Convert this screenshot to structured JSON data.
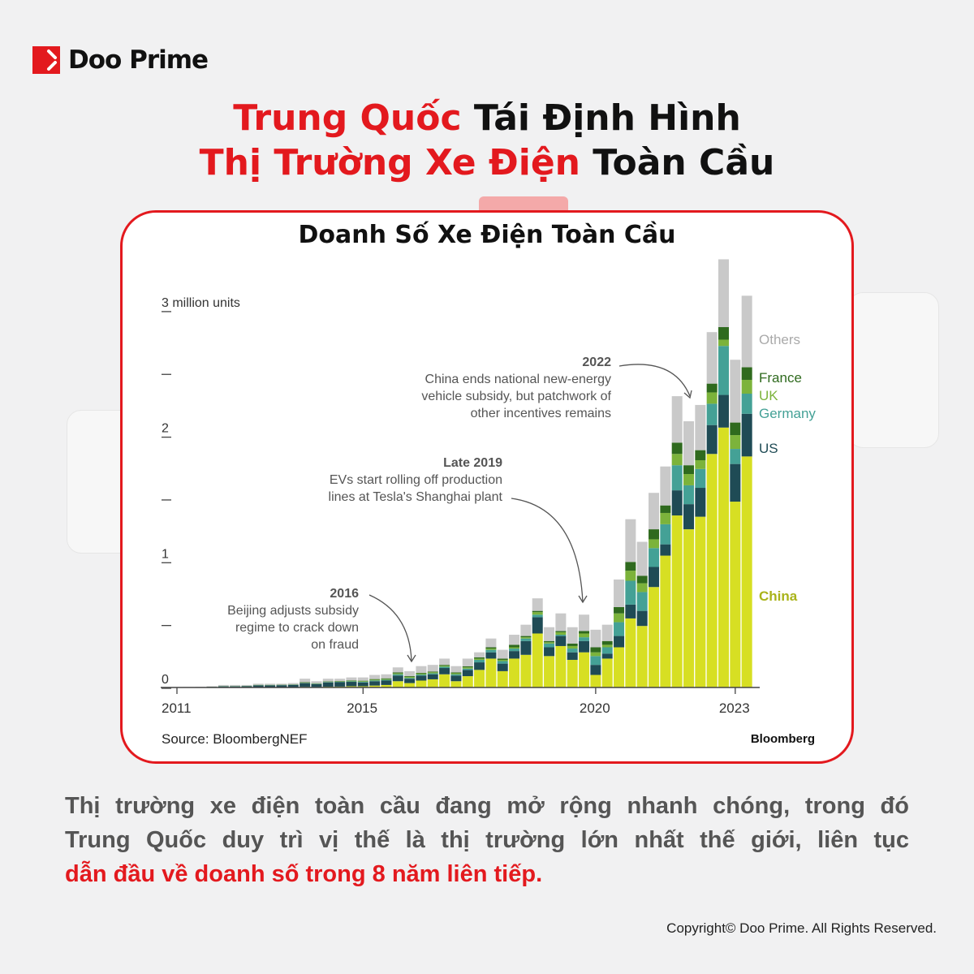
{
  "brand": {
    "name": "Doo Prime",
    "color": "#e3191e"
  },
  "title": {
    "line1_highlight": "Trung Quốc",
    "line1_rest": " Tái Định Hình",
    "line2_highlight": "Thị Trường Xe Điện",
    "line2_rest": " Toàn Cầu"
  },
  "chart_data": {
    "type": "bar",
    "stacked": true,
    "title": "Doanh Số Xe Điện Toàn Cầu",
    "ylabel": "3 million units",
    "ylim": [
      0,
      3.4
    ],
    "yticks": [
      0,
      0.5,
      1,
      1.5,
      2,
      2.5,
      3
    ],
    "ytick_labels": {
      "0": "0",
      "1": "1",
      "2": "2",
      "3": "3 million units"
    },
    "xtick_labels": [
      "2011",
      "2015",
      "2020",
      "2023"
    ],
    "categories": [
      "2011Q1",
      "2011Q2",
      "2011Q3",
      "2011Q4",
      "2012Q1",
      "2012Q2",
      "2012Q3",
      "2012Q4",
      "2013Q1",
      "2013Q2",
      "2013Q3",
      "2013Q4",
      "2014Q1",
      "2014Q2",
      "2014Q3",
      "2014Q4",
      "2015Q1",
      "2015Q2",
      "2015Q3",
      "2015Q4",
      "2016Q1",
      "2016Q2",
      "2016Q3",
      "2016Q4",
      "2017Q1",
      "2017Q2",
      "2017Q3",
      "2017Q4",
      "2018Q1",
      "2018Q2",
      "2018Q3",
      "2018Q4",
      "2019Q1",
      "2019Q2",
      "2019Q3",
      "2019Q4",
      "2020Q1",
      "2020Q2",
      "2020Q3",
      "2020Q4",
      "2021Q1",
      "2021Q2",
      "2021Q3",
      "2021Q4",
      "2022Q1",
      "2022Q2",
      "2022Q3",
      "2022Q4",
      "2023Q1",
      "2023Q2"
    ],
    "series": [
      {
        "name": "China",
        "color": "#d7df23",
        "values": [
          0,
          0,
          0,
          0.001,
          0.001,
          0.001,
          0.002,
          0.003,
          0.002,
          0.002,
          0.003,
          0.005,
          0.004,
          0.006,
          0.007,
          0.01,
          0.01,
          0.015,
          0.02,
          0.05,
          0.035,
          0.055,
          0.065,
          0.105,
          0.05,
          0.09,
          0.14,
          0.23,
          0.13,
          0.23,
          0.26,
          0.43,
          0.25,
          0.33,
          0.22,
          0.28,
          0.1,
          0.23,
          0.32,
          0.55,
          0.49,
          0.8,
          1.05,
          1.37,
          1.26,
          1.36,
          1.86,
          2.07,
          1.48,
          1.84
        ]
      },
      {
        "name": "US",
        "color": "#1f4b55",
        "values": [
          0.002,
          0.002,
          0.002,
          0.004,
          0.008,
          0.008,
          0.009,
          0.014,
          0.015,
          0.016,
          0.018,
          0.03,
          0.024,
          0.035,
          0.035,
          0.035,
          0.03,
          0.035,
          0.035,
          0.045,
          0.035,
          0.04,
          0.04,
          0.05,
          0.045,
          0.05,
          0.06,
          0.05,
          0.06,
          0.06,
          0.11,
          0.13,
          0.07,
          0.08,
          0.06,
          0.09,
          0.08,
          0.04,
          0.09,
          0.11,
          0.12,
          0.16,
          0.09,
          0.2,
          0.2,
          0.23,
          0.23,
          0.26,
          0.3,
          0.34
        ]
      },
      {
        "name": "Germany",
        "color": "#44a196",
        "values": [
          0,
          0,
          0,
          0,
          0.001,
          0.001,
          0.001,
          0.001,
          0.001,
          0.001,
          0.001,
          0.002,
          0.002,
          0.003,
          0.003,
          0.004,
          0.005,
          0.006,
          0.006,
          0.01,
          0.006,
          0.008,
          0.008,
          0.01,
          0.01,
          0.01,
          0.02,
          0.02,
          0.02,
          0.02,
          0.02,
          0.02,
          0.03,
          0.01,
          0.03,
          0.03,
          0.07,
          0.05,
          0.11,
          0.19,
          0.15,
          0.15,
          0.16,
          0.2,
          0.15,
          0.15,
          0.17,
          0.39,
          0.12,
          0.16
        ]
      },
      {
        "name": "UK",
        "color": "#7cb33b",
        "values": [
          0,
          0,
          0,
          0,
          0.001,
          0.001,
          0.001,
          0.001,
          0.001,
          0.001,
          0.001,
          0.002,
          0.002,
          0.002,
          0.003,
          0.004,
          0.005,
          0.006,
          0.006,
          0.007,
          0.008,
          0.008,
          0.008,
          0.008,
          0.008,
          0.01,
          0.01,
          0.01,
          0.01,
          0.01,
          0.01,
          0.02,
          0.01,
          0.02,
          0.02,
          0.03,
          0.03,
          0.02,
          0.07,
          0.08,
          0.07,
          0.07,
          0.09,
          0.09,
          0.09,
          0.07,
          0.09,
          0.05,
          0.11,
          0.11
        ]
      },
      {
        "name": "France",
        "color": "#2f6a1e",
        "values": [
          0,
          0,
          0.001,
          0.001,
          0.001,
          0.001,
          0.001,
          0.002,
          0.002,
          0.002,
          0.002,
          0.003,
          0.002,
          0.003,
          0.003,
          0.004,
          0.004,
          0.005,
          0.006,
          0.008,
          0.006,
          0.006,
          0.006,
          0.007,
          0.007,
          0.008,
          0.01,
          0.01,
          0.01,
          0.02,
          0.01,
          0.01,
          0.01,
          0.01,
          0.02,
          0.02,
          0.04,
          0.03,
          0.05,
          0.07,
          0.06,
          0.08,
          0.06,
          0.09,
          0.07,
          0.08,
          0.07,
          0.1,
          0.1,
          0.1
        ]
      },
      {
        "name": "Others",
        "color": "#c9c9c9",
        "values": [
          0.001,
          0.002,
          0.002,
          0.004,
          0.008,
          0.008,
          0.006,
          0.009,
          0.009,
          0.008,
          0.01,
          0.028,
          0.016,
          0.021,
          0.019,
          0.023,
          0.026,
          0.033,
          0.032,
          0.04,
          0.04,
          0.053,
          0.053,
          0.05,
          0.05,
          0.062,
          0.04,
          0.07,
          0.07,
          0.08,
          0.09,
          0.1,
          0.11,
          0.14,
          0.13,
          0.13,
          0.14,
          0.13,
          0.22,
          0.34,
          0.27,
          0.29,
          0.31,
          0.37,
          0.35,
          0.36,
          0.41,
          0.54,
          0.5,
          0.57
        ]
      }
    ],
    "legend_placement": "right, inline labels",
    "annotations": [
      {
        "heading": "2016",
        "lines": [
          "Beijing adjusts subsidy",
          "regime to crack down",
          "on fraud"
        ]
      },
      {
        "heading": "Late 2019",
        "lines": [
          "EVs start rolling off production",
          "lines at Tesla's Shanghai plant"
        ]
      },
      {
        "heading": "2022",
        "lines": [
          "China ends national new-energy",
          "vehicle subsidy, but patchwork of",
          "other incentives remains"
        ]
      }
    ],
    "source": "Source: BloombergNEF",
    "credit": "Bloomberg",
    "grid": false
  },
  "body": {
    "line1": "Thị trường xe điện toàn cầu đang mở rộng nhanh chóng, trong đó",
    "line2": "Trung Quốc duy trì vị thế là thị trường lớn nhất thế giới, liên tục",
    "line3_highlight": "dẫn đầu về doanh số trong 8 năm liên tiếp."
  },
  "copyright": "Copyright© Doo Prime. All Rights Reserved."
}
